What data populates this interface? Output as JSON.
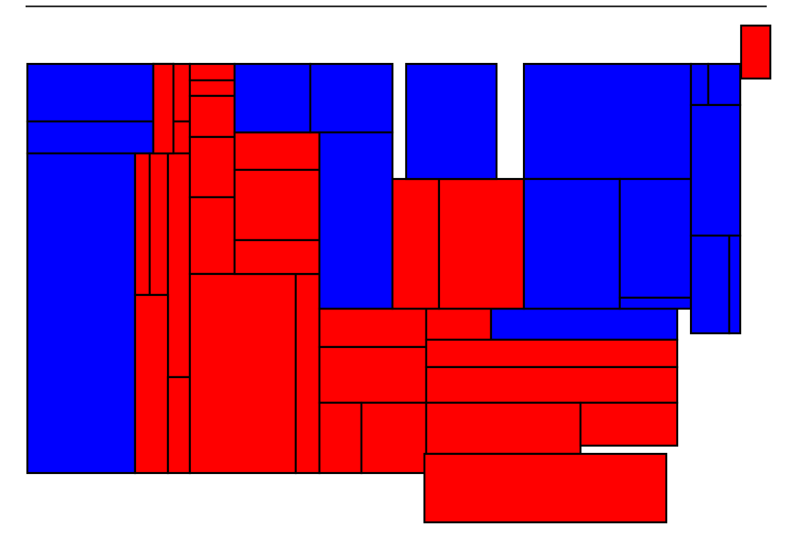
{
  "colors": {
    "blue": "#0000ff",
    "red": "#ff0000",
    "outline": "#000000"
  },
  "cartogram": {
    "type": "rectangular-cartogram",
    "regions": [
      {
        "id": "r01",
        "fill": "blue"
      },
      {
        "id": "r02",
        "fill": "blue"
      },
      {
        "id": "r03",
        "fill": "blue"
      },
      {
        "id": "r04",
        "fill": "red"
      },
      {
        "id": "r05",
        "fill": "red"
      },
      {
        "id": "r06",
        "fill": "red"
      },
      {
        "id": "r07",
        "fill": "red"
      },
      {
        "id": "r08",
        "fill": "red"
      },
      {
        "id": "r09",
        "fill": "red"
      },
      {
        "id": "r10",
        "fill": "red"
      },
      {
        "id": "r11",
        "fill": "red"
      },
      {
        "id": "r12",
        "fill": "red"
      },
      {
        "id": "r13",
        "fill": "red"
      },
      {
        "id": "r14",
        "fill": "red"
      },
      {
        "id": "r15",
        "fill": "red"
      },
      {
        "id": "r16",
        "fill": "red"
      },
      {
        "id": "r17",
        "fill": "red"
      },
      {
        "id": "r18",
        "fill": "red"
      },
      {
        "id": "r19",
        "fill": "red"
      },
      {
        "id": "r20",
        "fill": "red"
      },
      {
        "id": "r21",
        "fill": "blue"
      },
      {
        "id": "r22",
        "fill": "blue"
      },
      {
        "id": "r23",
        "fill": "red"
      },
      {
        "id": "r24",
        "fill": "red"
      },
      {
        "id": "r25",
        "fill": "red"
      },
      {
        "id": "r26",
        "fill": "red"
      },
      {
        "id": "r27",
        "fill": "red"
      },
      {
        "id": "r28",
        "fill": "red"
      },
      {
        "id": "r29",
        "fill": "blue"
      },
      {
        "id": "r30",
        "fill": "blue"
      },
      {
        "id": "r31",
        "fill": "red"
      },
      {
        "id": "r32",
        "fill": "red"
      },
      {
        "id": "r33",
        "fill": "blue"
      },
      {
        "id": "r34",
        "fill": "blue"
      },
      {
        "id": "r35",
        "fill": "blue"
      },
      {
        "id": "r36",
        "fill": "blue"
      },
      {
        "id": "r37",
        "fill": "blue"
      },
      {
        "id": "r38",
        "fill": "blue"
      },
      {
        "id": "r39",
        "fill": "blue"
      },
      {
        "id": "r40",
        "fill": "blue"
      },
      {
        "id": "r41",
        "fill": "blue"
      },
      {
        "id": "r42",
        "fill": "blue"
      },
      {
        "id": "r43",
        "fill": "red"
      },
      {
        "id": "r44",
        "fill": "red"
      },
      {
        "id": "r45",
        "fill": "red"
      },
      {
        "id": "r46",
        "fill": "red"
      },
      {
        "id": "r47",
        "fill": "red"
      },
      {
        "id": "r48",
        "fill": "red"
      },
      {
        "id": "r49",
        "fill": "red"
      },
      {
        "id": "r50",
        "fill": "red"
      },
      {
        "id": "r51",
        "fill": "red"
      },
      {
        "id": "r52",
        "fill": "red"
      }
    ]
  }
}
